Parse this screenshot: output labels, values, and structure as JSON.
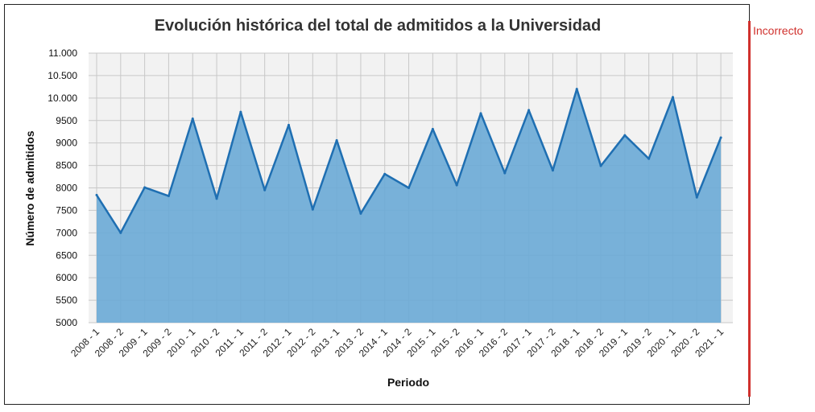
{
  "status_label": "Incorrecto",
  "colors": {
    "line": "#1f6fb2",
    "fill": "#6aaad6",
    "plot_bg": "#f2f2f2",
    "grid": "#c8c8c8",
    "status": "#d0312d"
  },
  "chart_data": {
    "type": "area",
    "title": "Evolución histórica del total de admitidos a la Universidad",
    "xlabel": "Periodo",
    "ylabel": "Número de admitidos",
    "ylim": [
      5000,
      11000
    ],
    "yticks": [
      5000,
      5500,
      6000,
      6500,
      7000,
      7500,
      8000,
      8500,
      9000,
      9500,
      10000,
      10500,
      11000
    ],
    "ytick_labels": [
      "5000",
      "5500",
      "6000",
      "6500",
      "7000",
      "7500",
      "8000",
      "8500",
      "9000",
      "9500",
      "10.000",
      "10.500",
      "11.000"
    ],
    "grid": true,
    "categories": [
      "2008 - 1",
      "2008 - 2",
      "2009 - 1",
      "2009 - 2",
      "2010 - 1",
      "2010 - 2",
      "2011 - 1",
      "2011 - 2",
      "2012 - 1",
      "2012 - 2",
      "2013 - 1",
      "2013 - 2",
      "2014 - 1",
      "2014 - 2",
      "2015 - 1",
      "2015 - 2",
      "2016 - 1",
      "2016 - 2",
      "2017 - 1",
      "2017 - 2",
      "2018 - 1",
      "2018 - 2",
      "2019 - 1",
      "2019 - 2",
      "2020 - 1",
      "2020 - 2",
      "2021 - 1"
    ],
    "values": [
      7840,
      7000,
      8010,
      7820,
      9540,
      7760,
      9690,
      7950,
      9400,
      7520,
      9060,
      7430,
      8310,
      8000,
      9310,
      8060,
      9660,
      8330,
      9730,
      8390,
      10200,
      8490,
      9170,
      8650,
      10020,
      7790,
      9120
    ]
  }
}
